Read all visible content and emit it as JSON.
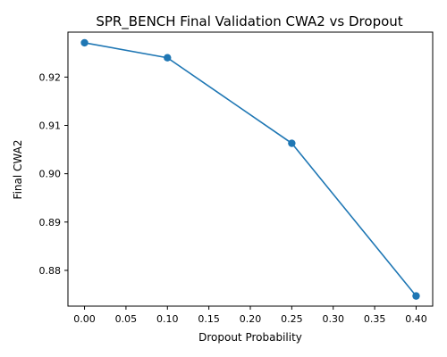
{
  "chart_data": {
    "type": "line",
    "title": "SPR_BENCH Final Validation CWA2 vs Dropout",
    "xlabel": "Dropout Probability",
    "ylabel": "Final CWA2",
    "x": [
      0.0,
      0.1,
      0.25,
      0.4
    ],
    "series": [
      {
        "values": [
          0.9271,
          0.924,
          0.9063,
          0.8747
        ]
      }
    ],
    "xlim": [
      -0.02,
      0.42
    ],
    "ylim": [
      0.8726,
      0.9293
    ],
    "xticks": [
      0.0,
      0.05,
      0.1,
      0.15,
      0.2,
      0.25,
      0.3,
      0.35,
      0.4
    ],
    "xtick_labels": [
      "0.00",
      "0.05",
      "0.10",
      "0.15",
      "0.20",
      "0.25",
      "0.30",
      "0.35",
      "0.40"
    ],
    "yticks": [
      0.88,
      0.89,
      0.9,
      0.91,
      0.92
    ],
    "ytick_labels": [
      "0.88",
      "0.89",
      "0.90",
      "0.91",
      "0.92"
    ],
    "grid": false,
    "colors": {
      "line": "#1f77b4",
      "marker": "#1f77b4",
      "axes": "#000000"
    }
  }
}
